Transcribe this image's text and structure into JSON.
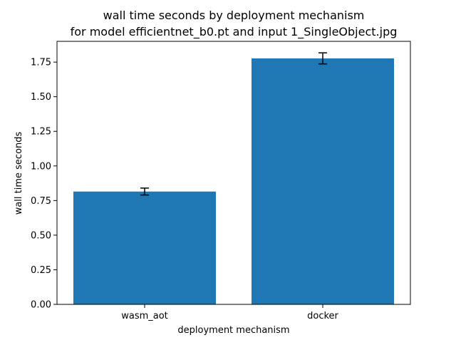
{
  "chart_data": {
    "type": "bar",
    "title": "wall time seconds by deployment mechanism",
    "subtitle": "for model efficientnet_b0.pt and input 1_SingleObject.jpg",
    "xlabel": "deployment mechanism",
    "ylabel": "wall time seconds",
    "categories": [
      "wasm_aot",
      "docker"
    ],
    "values": [
      0.815,
      1.777
    ],
    "errors": [
      0.025,
      0.04
    ],
    "ylim": [
      0,
      1.9
    ],
    "yticks": [
      0,
      0.25,
      0.5,
      0.75,
      1.0,
      1.25,
      1.5,
      1.75
    ],
    "ytick_labels": [
      "0.00",
      "0.25",
      "0.50",
      "0.75",
      "1.00",
      "1.25",
      "1.50",
      "1.75"
    ],
    "bar_color": "#1f77b4",
    "grid": false,
    "legend": "none"
  }
}
